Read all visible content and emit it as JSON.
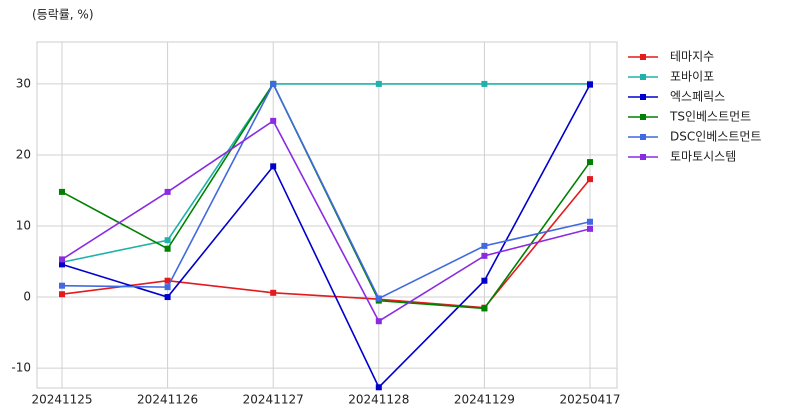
{
  "chart_data": {
    "type": "line",
    "y_label": "(등락률, %)",
    "categories": [
      "20241125",
      "20241126",
      "20241127",
      "20241128",
      "20241129",
      "20250417"
    ],
    "series": [
      {
        "name": "테마지수",
        "color": "#e41a1c",
        "values": [
          0.4,
          2.3,
          0.6,
          -0.3,
          -1.5,
          16.6
        ]
      },
      {
        "name": "포바이포",
        "color": "#20b2aa",
        "values": [
          4.9,
          8.0,
          30,
          30,
          30,
          30
        ]
      },
      {
        "name": "엑스페릭스",
        "color": "#0000cd",
        "values": [
          4.6,
          0.0,
          18.4,
          -12.7,
          2.3,
          29.9
        ]
      },
      {
        "name": "TS인베스트먼트",
        "color": "#008000",
        "values": [
          14.8,
          6.8,
          30,
          -0.5,
          -1.6,
          19.0
        ]
      },
      {
        "name": "DSC인베스트먼트",
        "color": "#4169e1",
        "values": [
          1.6,
          1.4,
          30,
          -0.2,
          7.2,
          10.6
        ]
      },
      {
        "name": "토마토시스템",
        "color": "#8a2be2",
        "values": [
          5.3,
          14.8,
          24.8,
          -3.4,
          5.8,
          9.6
        ]
      }
    ],
    "ylim": [
      -12.8,
      35.9
    ],
    "yticks": [
      -10,
      0,
      10,
      20,
      30
    ],
    "grid": true,
    "legend": "right"
  }
}
